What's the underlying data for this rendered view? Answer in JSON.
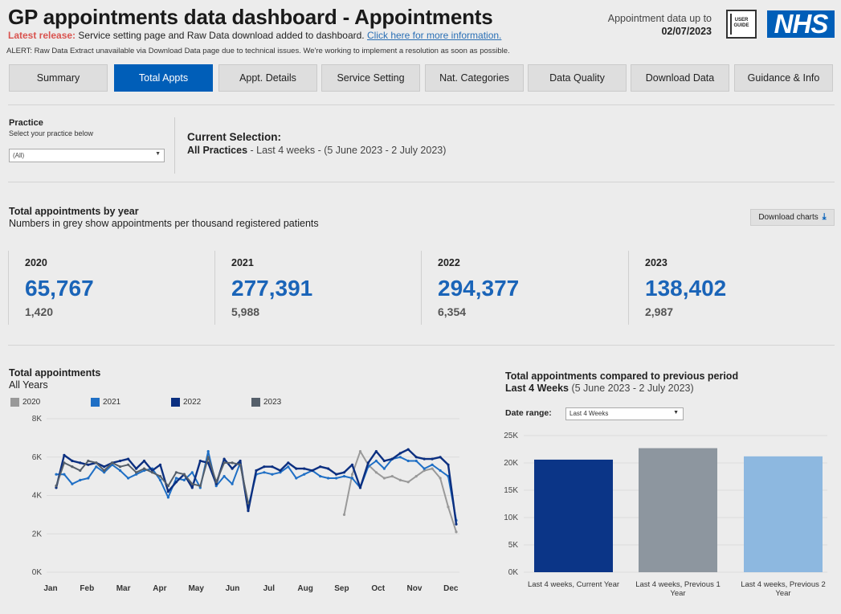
{
  "header": {
    "title": "GP appointments data dashboard - Appointments",
    "release_label": "Latest release:",
    "release_text": "Service setting page and Raw Data download added to dashboard.",
    "release_link": "Click here for more information.",
    "alert": "ALERT: Raw Data Extract unavailable via Download Data page due to technical issues. We're working to implement a resolution as soon as possible.",
    "data_up_to_label": "Appointment data up to",
    "data_up_to_date": "02/07/2023",
    "user_guide": "USER GUIDE",
    "logo": "NHS"
  },
  "nav": {
    "tabs": [
      "Summary",
      "Total Appts",
      "Appt. Details",
      "Service Setting",
      "Nat. Categories",
      "Data Quality",
      "Download Data",
      "Guidance & Info"
    ],
    "active_index": 1
  },
  "filters": {
    "practice_label": "Practice",
    "practice_sub": "Select your practice below",
    "practice_value": "(All)",
    "current_selection_label": "Current Selection:",
    "current_selection_bold": "All Practices",
    "current_selection_rest": " - Last 4 weeks - (5 June 2023 - 2 July 2023)"
  },
  "totals_by_year": {
    "title": "Total appointments by year",
    "subtitle": "Numbers in grey show appointments per thousand registered patients",
    "download_label": "Download charts",
    "cards": [
      {
        "year": "2020",
        "total": "65,767",
        "per_thousand": "1,420"
      },
      {
        "year": "2021",
        "total": "277,391",
        "per_thousand": "5,988"
      },
      {
        "year": "2022",
        "total": "294,377",
        "per_thousand": "6,354"
      },
      {
        "year": "2023",
        "total": "138,402",
        "per_thousand": "2,987"
      }
    ]
  },
  "line_panel": {
    "title": "Total appointments",
    "subtitle": "All Years"
  },
  "bar_panel": {
    "title": "Total appointments compared to previous period",
    "sub_bold": "Last 4 Weeks",
    "sub_rest": " (5 June 2023 - 2 July 2023)",
    "date_range_label": "Date range:",
    "date_range_value": "Last 4 Weeks"
  },
  "colors": {
    "y2020": "#999999",
    "y2021": "#1f6fc5",
    "y2022": "#0b2f80",
    "y2023": "#555f6a",
    "bar_current": "#0b3587",
    "bar_prev1": "#8d969f",
    "bar_prev2": "#8db8e0",
    "accent": "#005eb8"
  },
  "chart_data": [
    {
      "type": "line",
      "title": "Total appointments",
      "x_ticks": [
        "Jan",
        "Feb",
        "Mar",
        "Apr",
        "May",
        "Jun",
        "Jul",
        "Aug",
        "Sep",
        "Oct",
        "Nov",
        "Dec"
      ],
      "y_ticks": [
        "0K",
        "2K",
        "4K",
        "6K",
        "8K"
      ],
      "ylim": [
        0,
        8000
      ],
      "x_unit": "week of year",
      "legend_position": "top",
      "series": [
        {
          "name": "2020",
          "x": [
            38,
            39,
            40,
            41,
            42,
            43,
            44,
            45,
            46,
            47,
            48,
            49,
            50,
            51,
            52
          ],
          "values": [
            3000,
            5100,
            6300,
            5600,
            5200,
            4900,
            5000,
            4800,
            4700,
            5000,
            5300,
            5400,
            4900,
            3400,
            2100
          ]
        },
        {
          "name": "2021",
          "x": [
            2,
            3,
            4,
            5,
            6,
            7,
            8,
            9,
            10,
            11,
            12,
            13,
            14,
            15,
            16,
            17,
            18,
            19,
            20,
            21,
            22,
            23,
            24,
            25,
            26,
            27,
            28,
            29,
            30,
            31,
            32,
            33,
            34,
            35,
            36,
            37,
            38,
            39,
            40,
            41,
            42,
            43,
            44,
            45,
            46,
            47,
            48,
            49,
            50,
            51,
            52
          ],
          "values": [
            5100,
            5100,
            4600,
            4800,
            4900,
            5500,
            5200,
            5600,
            5300,
            4900,
            5100,
            5300,
            5400,
            4800,
            3900,
            4900,
            4800,
            5200,
            4400,
            6300,
            4500,
            5000,
            4600,
            5700,
            3400,
            5100,
            5200,
            5100,
            5200,
            5500,
            4900,
            5100,
            5300,
            5000,
            4900,
            4900,
            5000,
            4900,
            4400,
            5500,
            5800,
            5400,
            5900,
            6000,
            5800,
            5800,
            5400,
            5600,
            5300,
            5000,
            2700
          ]
        },
        {
          "name": "2022",
          "x": [
            2,
            3,
            4,
            5,
            6,
            7,
            8,
            9,
            10,
            11,
            12,
            13,
            14,
            15,
            16,
            17,
            18,
            19,
            20,
            21,
            22,
            23,
            24,
            25,
            26,
            27,
            28,
            29,
            30,
            31,
            32,
            33,
            34,
            35,
            36,
            37,
            38,
            39,
            40,
            41,
            42,
            43,
            44,
            45,
            46,
            47,
            48,
            49,
            50,
            51,
            52
          ],
          "values": [
            4400,
            6100,
            5800,
            5700,
            5600,
            5700,
            5500,
            5700,
            5800,
            5900,
            5400,
            5800,
            5300,
            5600,
            4200,
            4700,
            5100,
            4400,
            5800,
            5700,
            4600,
            5900,
            5400,
            5800,
            3200,
            5300,
            5500,
            5500,
            5300,
            5700,
            5400,
            5400,
            5300,
            5500,
            5400,
            5100,
            5200,
            5600,
            4400,
            5700,
            6300,
            5800,
            5900,
            6200,
            6400,
            6000,
            5900,
            5900,
            6000,
            5600,
            2500
          ]
        },
        {
          "name": "2023",
          "x": [
            2,
            3,
            4,
            5,
            6,
            7,
            8,
            9,
            10,
            11,
            12,
            13,
            14,
            15,
            16,
            17,
            18,
            19,
            20,
            21,
            22,
            23,
            24,
            25,
            26
          ],
          "values": [
            4500,
            5700,
            5500,
            5300,
            5800,
            5700,
            5300,
            5700,
            5500,
            5600,
            5200,
            5400,
            5200,
            5000,
            4500,
            5200,
            5100,
            4600,
            4500,
            6000,
            4700,
            5700,
            5700,
            5600,
            3600
          ]
        }
      ]
    },
    {
      "type": "bar",
      "title": "Total appointments compared to previous period",
      "categories": [
        "Last 4 weeks, Current Year",
        "Last 4 weeks, Previous 1 Year",
        "Last 4 weeks, Previous 2 Year"
      ],
      "values": [
        20600,
        22700,
        21200
      ],
      "y_ticks": [
        "0K",
        "5K",
        "10K",
        "15K",
        "20K",
        "25K"
      ],
      "ylim": [
        0,
        25000
      ]
    }
  ]
}
